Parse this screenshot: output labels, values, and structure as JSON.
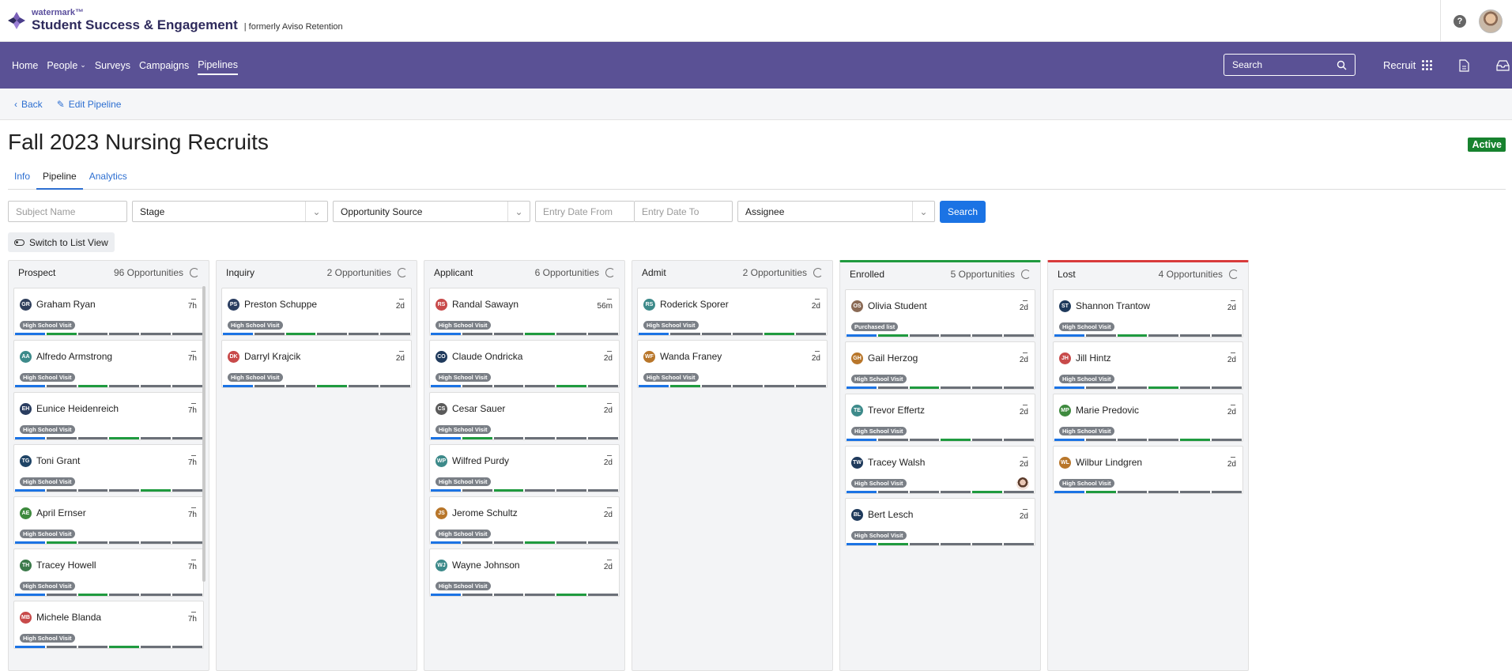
{
  "brand": {
    "small": "watermark™",
    "title": "Student Success & Engagement",
    "formerly": "|  formerly Aviso Retention"
  },
  "nav": {
    "items": [
      "Home",
      "People",
      "Surveys",
      "Campaigns",
      "Pipelines"
    ],
    "search_placeholder": "Search",
    "recruit": "Recruit"
  },
  "toolbar": {
    "back": "Back",
    "edit": "Edit Pipeline"
  },
  "page": {
    "title": "Fall 2023 Nursing Recruits",
    "status": "Active"
  },
  "tabs": [
    "Info",
    "Pipeline",
    "Analytics"
  ],
  "filters": {
    "subject": "Subject Name",
    "stage": "Stage",
    "source": "Opportunity Source",
    "date_from": "Entry Date From",
    "date_to": "Entry Date To",
    "assignee": "Assignee",
    "search": "Search"
  },
  "switch_label": "Switch to List View",
  "colors": {
    "accent": "#5a5195",
    "blue": "#1b73e4",
    "green": "#1f9a3f",
    "gray": "#7a7f86"
  },
  "columns": [
    {
      "name": "Prospect",
      "count": "96 Opportunities",
      "cards": [
        {
          "initials": "GR",
          "name": "Graham Ryan",
          "time": "7h",
          "tag": "High School Visit",
          "color": "#2f3f5c"
        },
        {
          "initials": "AA",
          "name": "Alfredo Armstrong",
          "time": "7h",
          "tag": "High School Visit",
          "color": "#3d8a8a"
        },
        {
          "initials": "EH",
          "name": "Eunice Heidenreich",
          "time": "7h",
          "tag": "High School Visit",
          "color": "#2a3d60"
        },
        {
          "initials": "TG",
          "name": "Toni Grant",
          "time": "7h",
          "tag": "High School Visit",
          "color": "#1f4466"
        },
        {
          "initials": "AE",
          "name": "April Ernser",
          "time": "7h",
          "tag": "High School Visit",
          "color": "#3e8a3e"
        },
        {
          "initials": "TH",
          "name": "Tracey Howell",
          "time": "7h",
          "tag": "High School Visit",
          "color": "#3c7a4a"
        },
        {
          "initials": "MB",
          "name": "Michele Blanda",
          "time": "7h",
          "tag": "High School Visit",
          "color": "#c84a4a"
        }
      ]
    },
    {
      "name": "Inquiry",
      "count": "2 Opportunities",
      "cards": [
        {
          "initials": "PS",
          "name": "Preston Schuppe",
          "time": "2d",
          "tag": "High School Visit",
          "color": "#2a3d60"
        },
        {
          "initials": "DK",
          "name": "Darryl Krajcik",
          "time": "2d",
          "tag": "High School Visit",
          "color": "#c84a4a"
        }
      ]
    },
    {
      "name": "Applicant",
      "count": "6 Opportunities",
      "cards": [
        {
          "initials": "RS",
          "name": "Randal Sawayn",
          "time": "56m",
          "tag": "High School Visit",
          "color": "#c84a4a"
        },
        {
          "initials": "CO",
          "name": "Claude Ondricka",
          "time": "2d",
          "tag": "High School Visit",
          "color": "#1f3a5c"
        },
        {
          "initials": "CS",
          "name": "Cesar Sauer",
          "time": "2d",
          "tag": "High School Visit",
          "color": "#5a5a5a"
        },
        {
          "initials": "WP",
          "name": "Wilfred Purdy",
          "time": "2d",
          "tag": "High School Visit",
          "color": "#3d8a8a"
        },
        {
          "initials": "JS",
          "name": "Jerome Schultz",
          "time": "2d",
          "tag": "High School Visit",
          "color": "#b8762a"
        },
        {
          "initials": "WJ",
          "name": "Wayne Johnson",
          "time": "2d",
          "tag": "High School Visit",
          "color": "#3d8a8a"
        }
      ]
    },
    {
      "name": "Admit",
      "count": "2 Opportunities",
      "cards": [
        {
          "initials": "RS",
          "name": "Roderick Sporer",
          "time": "2d",
          "tag": "High School Visit",
          "color": "#3d8a8a"
        },
        {
          "initials": "WF",
          "name": "Wanda Franey",
          "time": "2d",
          "tag": "High School Visit",
          "color": "#b8762a"
        }
      ]
    },
    {
      "name": "Enrolled",
      "count": "5 Opportunities",
      "cards": [
        {
          "initials": "OS",
          "name": "Olivia Student",
          "time": "2d",
          "tag": "Purchased list",
          "color": "#8a6a55"
        },
        {
          "initials": "GH",
          "name": "Gail Herzog",
          "time": "2d",
          "tag": "High School Visit",
          "color": "#b8762a"
        },
        {
          "initials": "TE",
          "name": "Trevor Effertz",
          "time": "2d",
          "tag": "High School Visit",
          "color": "#3d8a8a"
        },
        {
          "initials": "TW",
          "name": "Tracey Walsh",
          "time": "2d",
          "tag": "High School Visit",
          "color": "#1f3a5c"
        },
        {
          "initials": "BL",
          "name": "Bert Lesch",
          "time": "2d",
          "tag": "High School Visit",
          "color": "#1f3a5c"
        }
      ]
    },
    {
      "name": "Lost",
      "count": "4 Opportunities",
      "cards": [
        {
          "initials": "ST",
          "name": "Shannon Trantow",
          "time": "2d",
          "tag": "High School Visit",
          "color": "#1f3a5c"
        },
        {
          "initials": "JH",
          "name": "Jill Hintz",
          "time": "2d",
          "tag": "High School Visit",
          "color": "#c84a4a"
        },
        {
          "initials": "MP",
          "name": "Marie Predovic",
          "time": "2d",
          "tag": "High School Visit",
          "color": "#3e8a3e"
        },
        {
          "initials": "WL",
          "name": "Wilbur Lindgren",
          "time": "2d",
          "tag": "High School Visit",
          "color": "#b8762a"
        }
      ]
    }
  ]
}
